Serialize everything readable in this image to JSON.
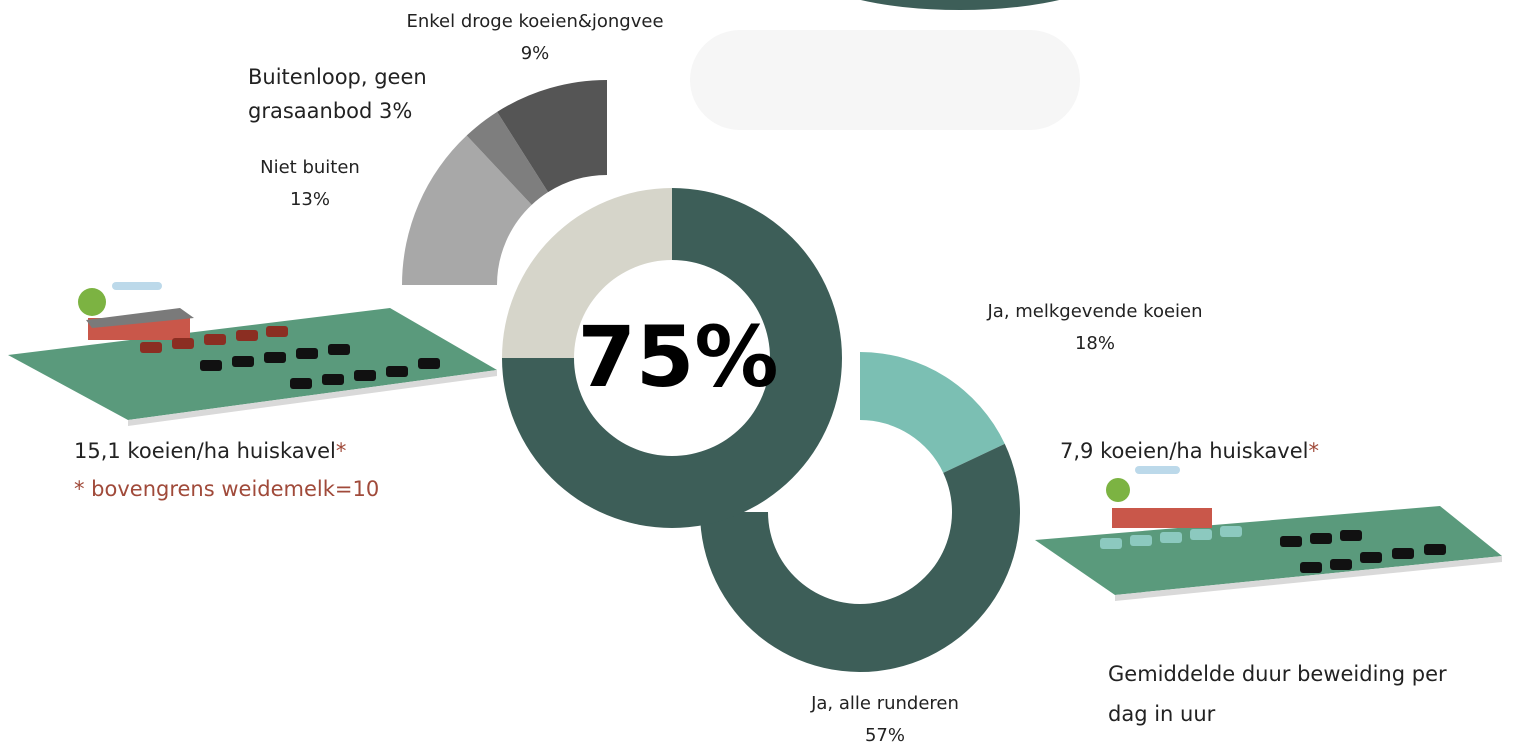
{
  "chart_data": [
    {
      "type": "donut",
      "values": [
        75,
        25
      ],
      "value_labels": [
        "75%",
        null
      ],
      "colors": [
        "#3d5e58",
        "#d6d5ca"
      ]
    },
    {
      "type": "split-ring",
      "categories": [
        "Niet buiten",
        "Buitenloop, geen grasaanbod",
        "Enkel droge koeien&jongvee",
        "Ja, melkgevende koeien",
        "Ja, alle runderen"
      ],
      "values": [
        13,
        3,
        9,
        18,
        57
      ],
      "value_labels": [
        "13%",
        "3%",
        "9%",
        "18%",
        "57%"
      ],
      "colors": [
        "#a8a8a8",
        "#7e7e7e",
        "#555555",
        "#7bbfb3",
        "#3d5e58"
      ]
    }
  ],
  "annotations": {
    "left_density": "15,1 koeien/ha huiskavel",
    "asterisk": "*",
    "left_note": "* bovengrens weidemelk=10",
    "right_density": "7,9 koeien/ha huiskavel",
    "duration_title": "Gemiddelde duur beweiding per dag in uur"
  }
}
